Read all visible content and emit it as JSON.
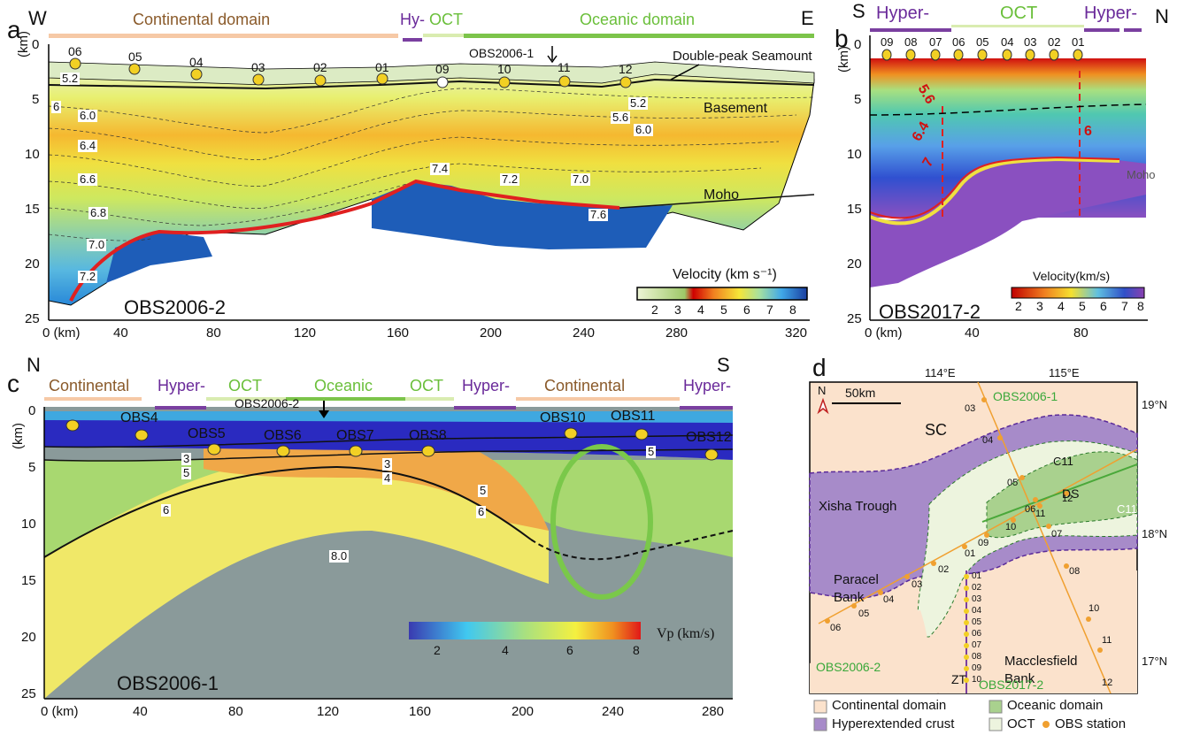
{
  "panel_a": {
    "label": "a",
    "west": "W",
    "east": "E",
    "domains": [
      "Continental domain",
      "Hy-",
      "OCT",
      "Oceanic domain"
    ],
    "stations": [
      "06",
      "05",
      "04",
      "03",
      "02",
      "01",
      "09",
      "10",
      "11",
      "12"
    ],
    "obs_marker": "OBS2006-1",
    "seamount": "Double-peak Seamount",
    "basement": "Basement",
    "moho": "Moho",
    "contours": [
      "5.2",
      "6",
      "6.0",
      "6.4",
      "6.6",
      "6.8",
      "7.0",
      "7.2",
      "7.4",
      "7.2",
      "7.0",
      "7.6",
      "5.2",
      "5.6",
      "6.0"
    ],
    "yunit": "(km)",
    "yticks": [
      "0",
      "5",
      "10",
      "15",
      "20",
      "25"
    ],
    "xticks": [
      "0 (km)",
      "40",
      "80",
      "120",
      "160",
      "200",
      "240",
      "280",
      "320"
    ],
    "cbar_title": "Velocity (km s⁻¹)",
    "cbar_ticks": [
      "2",
      "3",
      "4",
      "5",
      "6",
      "7",
      "8"
    ],
    "profile": "OBS2006-2"
  },
  "panel_b": {
    "label": "b",
    "south": "S",
    "north": "N",
    "domains": [
      "Hyper-",
      "OCT",
      "Hyper-"
    ],
    "stations": [
      "09",
      "08",
      "07",
      "06",
      "05",
      "04",
      "03",
      "02",
      "01"
    ],
    "contours": [
      "5.6",
      "6.4",
      "7",
      "6"
    ],
    "moho": "Moho",
    "yunit": "(km)",
    "yticks": [
      "0",
      "5",
      "10",
      "15",
      "20",
      "25"
    ],
    "xticks": [
      "0 (km)",
      "40",
      "80"
    ],
    "cbar_title": "Velocity(km/s)",
    "cbar_ticks": [
      "2",
      "3",
      "4",
      "5",
      "6",
      "7",
      "8"
    ],
    "profile": "OBS2017-2"
  },
  "panel_c": {
    "label": "c",
    "north": "N",
    "south": "S",
    "domains": [
      "Continental",
      "Hyper-",
      "OCT",
      "Oceanic",
      "OCT",
      "Hyper-",
      "Continental",
      "Hyper-"
    ],
    "stations": [
      "OBS4",
      "OBS5",
      "OBS6",
      "OBS7",
      "OBS8",
      "OBS10",
      "OBS11",
      "OBS12"
    ],
    "obs_marker": "OBS2006-2",
    "contours": [
      "3",
      "5",
      "3",
      "4",
      "5",
      "6",
      "6",
      "5",
      "8.0"
    ],
    "yunit": "(km)",
    "yticks": [
      "0",
      "5",
      "10",
      "15",
      "20",
      "25"
    ],
    "xticks": [
      "0 (km)",
      "40",
      "80",
      "120",
      "160",
      "200",
      "240",
      "280"
    ],
    "cbar_title": "Vp (km/s)",
    "cbar_ticks": [
      "2",
      "4",
      "6",
      "8"
    ],
    "profile": "OBS2006-1"
  },
  "panel_d": {
    "label": "d",
    "lon_ticks": [
      "114°E",
      "115°E"
    ],
    "lat_ticks": [
      "19°N",
      "18°N",
      "17°N"
    ],
    "north": "N",
    "scale": "50km",
    "places": [
      "SC",
      "Xisha Trough",
      "Paracel Bank",
      "Macclesfield Bank",
      "DS",
      "ZT",
      "C11",
      "C11"
    ],
    "lines": [
      "OBS2006-1",
      "OBS2006-2",
      "OBS2017-2"
    ],
    "stations_2006_1": [
      "03",
      "04",
      "05",
      "06",
      "07",
      "08",
      "10",
      "11",
      "12"
    ],
    "stations_2006_2": [
      "06",
      "05",
      "04",
      "03",
      "02",
      "01",
      "09",
      "10",
      "11",
      "12"
    ],
    "stations_2017_2": [
      "01",
      "02",
      "03",
      "04",
      "05",
      "06",
      "07",
      "08",
      "09",
      "10"
    ],
    "legend": [
      "Continental domain",
      "Oceanic domain",
      "Hyperextended crust",
      "OCT",
      "OBS station"
    ],
    "colors": {
      "continental": "#f9dcc4",
      "oceanic": "#a9d18e",
      "hyper": "#a78bc9",
      "oct": "#ecf3dd",
      "obs": "#f0a030"
    }
  }
}
